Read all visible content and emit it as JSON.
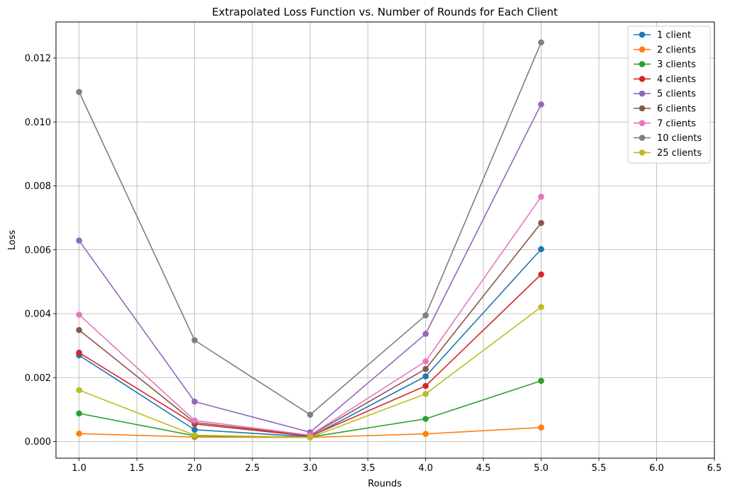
{
  "chart_data": {
    "type": "line",
    "title": "Extrapolated Loss Function vs. Number of Rounds for Each Client",
    "xlabel": "Rounds",
    "ylabel": "Loss",
    "x": [
      1,
      2,
      3,
      4,
      5
    ],
    "xlim": [
      0.8,
      6.5
    ],
    "ylim": [
      -0.00052,
      0.01313
    ],
    "xticks": [
      1.0,
      1.5,
      2.0,
      2.5,
      3.0,
      3.5,
      4.0,
      4.5,
      5.0,
      5.5,
      6.0,
      6.5
    ],
    "xtick_labels": [
      "1.0",
      "1.5",
      "2.0",
      "2.5",
      "3.0",
      "3.5",
      "4.0",
      "4.5",
      "5.0",
      "5.5",
      "6.0",
      "6.5"
    ],
    "yticks": [
      0,
      0.002,
      0.004,
      0.006,
      0.008,
      0.01,
      0.012
    ],
    "ytick_labels": [
      "0.000",
      "0.002",
      "0.004",
      "0.006",
      "0.008",
      "0.010",
      "0.012"
    ],
    "grid": true,
    "legend_position": "top-right",
    "series": [
      {
        "name": "1 client",
        "color": "#1f77b4",
        "values": [
          0.0027,
          0.00037,
          0.00015,
          0.00204,
          0.00602
        ]
      },
      {
        "name": "2 clients",
        "color": "#ff7f0e",
        "values": [
          0.00025,
          0.00014,
          0.00013,
          0.00024,
          0.00044
        ]
      },
      {
        "name": "3 clients",
        "color": "#2ca02c",
        "values": [
          0.00088,
          0.00018,
          0.00014,
          0.00071,
          0.0019
        ]
      },
      {
        "name": "4 clients",
        "color": "#d62728",
        "values": [
          0.00278,
          0.00055,
          0.00017,
          0.00174,
          0.00523
        ]
      },
      {
        "name": "5 clients",
        "color": "#9467bd",
        "values": [
          0.00629,
          0.00125,
          0.00029,
          0.00337,
          0.01055
        ]
      },
      {
        "name": "6 clients",
        "color": "#8c564b",
        "values": [
          0.00349,
          0.0006,
          0.00019,
          0.00227,
          0.00684
        ]
      },
      {
        "name": "7 clients",
        "color": "#e377c2",
        "values": [
          0.00397,
          0.00066,
          0.0002,
          0.00251,
          0.00766
        ]
      },
      {
        "name": "10 clients",
        "color": "#7f7f7f",
        "values": [
          0.01094,
          0.00317,
          0.00084,
          0.00395,
          0.01249
        ]
      },
      {
        "name": "25 clients",
        "color": "#bcbd22",
        "values": [
          0.00161,
          0.0002,
          0.00013,
          0.00149,
          0.00421
        ]
      }
    ]
  }
}
